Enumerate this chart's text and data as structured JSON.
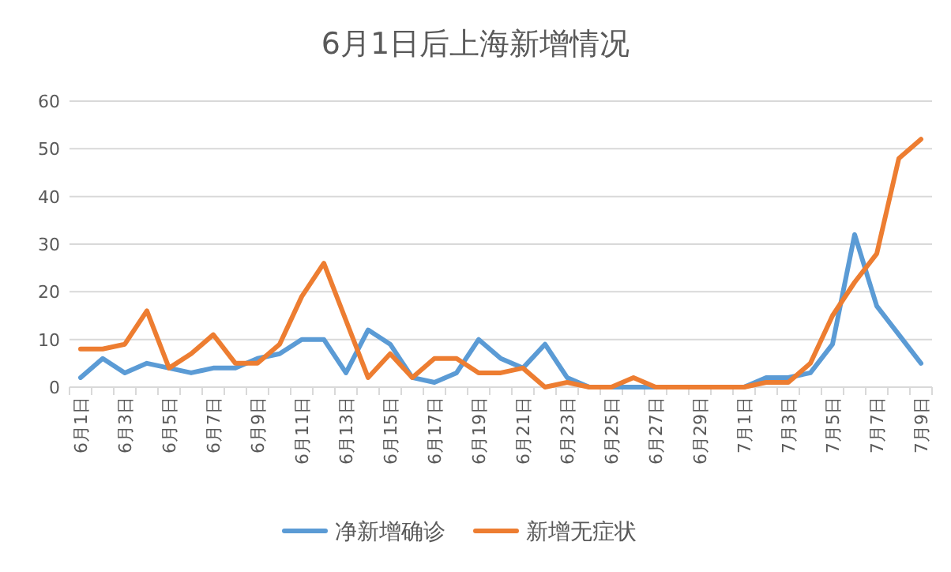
{
  "chart_data": {
    "type": "line",
    "title": "6月1日后上海新增情况",
    "categories": [
      "6月1日",
      null,
      "6月3日",
      null,
      "6月5日",
      null,
      "6月7日",
      null,
      "6月9日",
      null,
      "6月11日",
      null,
      "6月13日",
      null,
      "6月15日",
      null,
      "6月17日",
      null,
      "6月19日",
      null,
      "6月21日",
      null,
      "6月23日",
      null,
      "6月25日",
      null,
      "6月27日",
      null,
      "6月29日",
      null,
      "7月1日",
      null,
      "7月3日",
      null,
      "7月5日",
      null,
      "7月7日",
      null,
      "7月9日"
    ],
    "series": [
      {
        "name": "净新增确诊",
        "color": "#5b9bd5",
        "values": [
          2,
          6,
          3,
          5,
          4,
          3,
          4,
          4,
          6,
          7,
          10,
          10,
          3,
          12,
          9,
          2,
          1,
          3,
          10,
          6,
          4,
          9,
          2,
          0,
          0,
          0,
          0,
          0,
          0,
          0,
          0,
          2,
          2,
          3,
          9,
          32,
          17,
          11,
          5
        ]
      },
      {
        "name": "新增无症状",
        "color": "#ed7d31",
        "values": [
          8,
          8,
          9,
          16,
          4,
          7,
          11,
          5,
          5,
          9,
          19,
          26,
          14,
          2,
          7,
          2,
          6,
          6,
          3,
          3,
          4,
          0,
          1,
          0,
          0,
          2,
          0,
          0,
          0,
          0,
          0,
          1,
          1,
          5,
          15,
          22,
          28,
          48,
          52
        ]
      }
    ],
    "ylim": [
      0,
      60
    ],
    "yticks": [
      0,
      10,
      20,
      30,
      40,
      50,
      60
    ],
    "grid": "y",
    "legend": "bottom",
    "marker": "none",
    "line_style": "solid"
  }
}
